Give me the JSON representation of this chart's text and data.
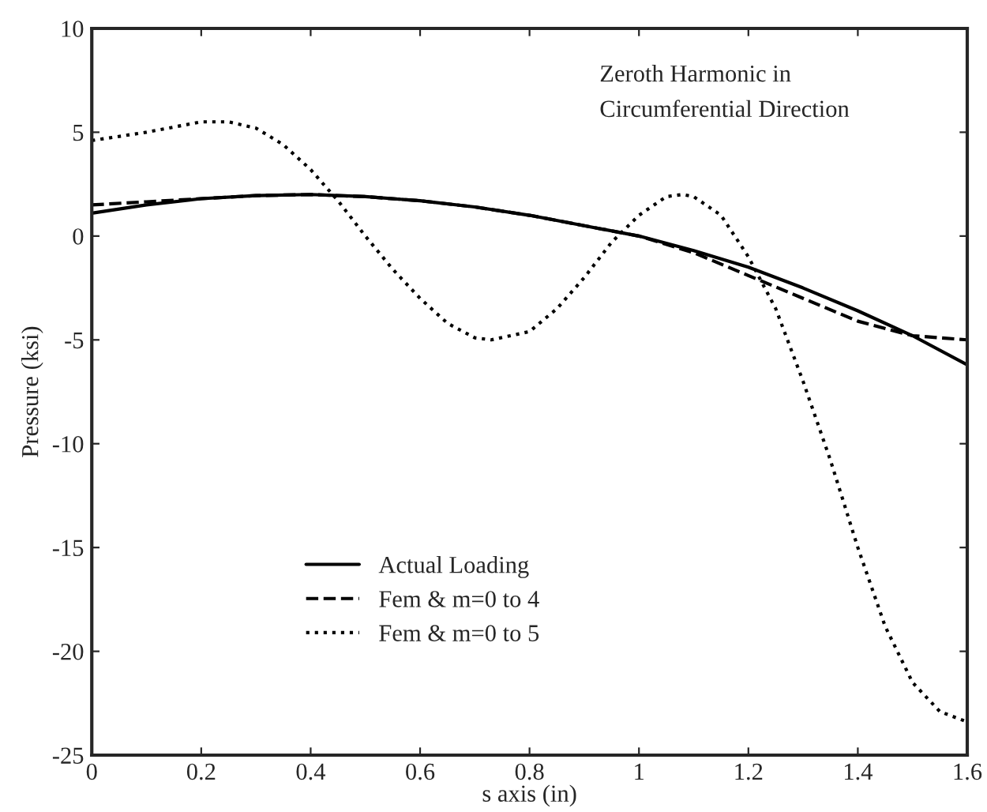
{
  "chart_data": {
    "type": "line",
    "xlabel": "s axis (in)",
    "ylabel": "Pressure (ksi)",
    "annotations": [
      "Zeroth Harmonic in\nCircumferential Direction"
    ],
    "xlim": [
      0,
      1.6
    ],
    "ylim": [
      -25,
      10
    ],
    "xticks": [
      0,
      0.2,
      0.4,
      0.6,
      0.8,
      1,
      1.2,
      1.4,
      1.6
    ],
    "yticks": [
      -25,
      -20,
      -15,
      -10,
      -5,
      0,
      5,
      10
    ],
    "grid": false,
    "legend": "bottom left",
    "series": [
      {
        "name": "Actual Loading",
        "color": "#000000",
        "line_style": "solid",
        "x": [
          0,
          0.1,
          0.2,
          0.3,
          0.4,
          0.5,
          0.6,
          0.7,
          0.8,
          0.9,
          1.0,
          1.1,
          1.2,
          1.3,
          1.4,
          1.5,
          1.6
        ],
        "values": [
          1.1,
          1.5,
          1.8,
          1.95,
          2.0,
          1.9,
          1.7,
          1.4,
          1.0,
          0.5,
          0.0,
          -0.7,
          -1.5,
          -2.5,
          -3.6,
          -4.8,
          -6.2
        ]
      },
      {
        "name": "Fem & m=0 to 4",
        "color": "#000000",
        "line_style": "dashed",
        "x": [
          0,
          0.1,
          0.2,
          0.3,
          0.4,
          0.5,
          0.6,
          0.7,
          0.8,
          0.9,
          1.0,
          1.1,
          1.2,
          1.3,
          1.4,
          1.5,
          1.6
        ],
        "values": [
          1.5,
          1.65,
          1.8,
          1.95,
          2.0,
          1.9,
          1.7,
          1.4,
          1.0,
          0.5,
          0.0,
          -0.8,
          -1.9,
          -3.0,
          -4.1,
          -4.8,
          -5.0
        ]
      },
      {
        "name": "Fem & m=0 to 5",
        "color": "#000000",
        "line_style": "dotted",
        "x": [
          0,
          0.1,
          0.2,
          0.25,
          0.3,
          0.35,
          0.4,
          0.45,
          0.5,
          0.55,
          0.6,
          0.65,
          0.7,
          0.73,
          0.8,
          0.85,
          0.9,
          0.95,
          1.0,
          1.05,
          1.08,
          1.1,
          1.15,
          1.2,
          1.25,
          1.3,
          1.35,
          1.4,
          1.45,
          1.5,
          1.55,
          1.6
        ],
        "values": [
          4.6,
          5.0,
          5.5,
          5.5,
          5.2,
          4.4,
          3.2,
          1.7,
          0.0,
          -1.6,
          -3.0,
          -4.2,
          -4.9,
          -5.0,
          -4.6,
          -3.5,
          -2.0,
          -0.3,
          1.0,
          1.9,
          2.0,
          1.9,
          1.0,
          -1.0,
          -3.5,
          -7.0,
          -10.8,
          -15.0,
          -18.8,
          -21.5,
          -22.9,
          -23.4
        ]
      }
    ]
  }
}
